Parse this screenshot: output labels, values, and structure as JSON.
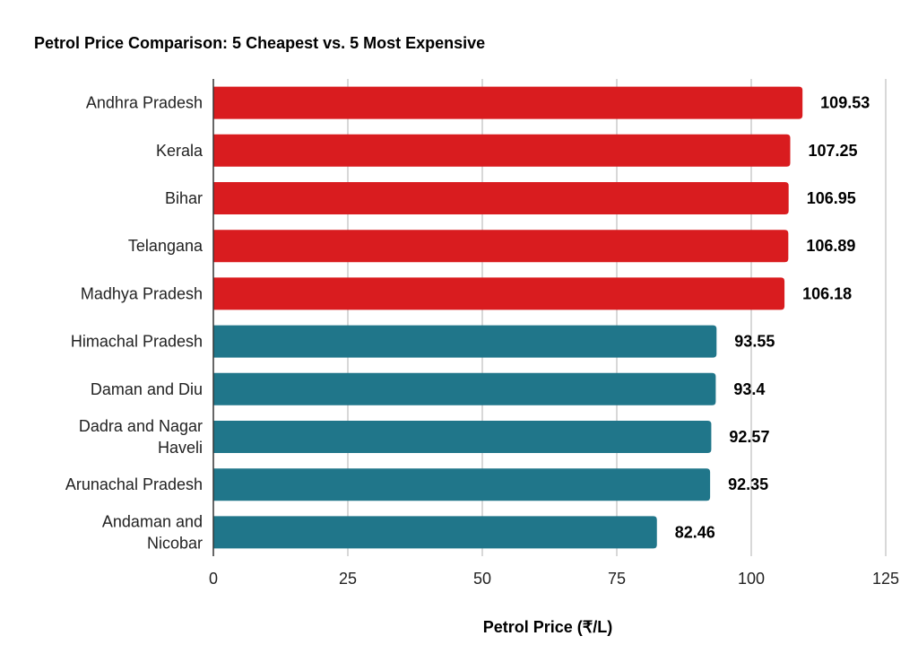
{
  "chart_data": {
    "type": "bar",
    "orientation": "horizontal",
    "title": "Petrol Price Comparison: 5 Cheapest vs. 5 Most Expensive",
    "xlabel": "Petrol Price (₹/L)",
    "ylabel": "",
    "xlim": [
      0,
      125
    ],
    "xticks": [
      0,
      25,
      50,
      75,
      100,
      125
    ],
    "grid": true,
    "legend": "none",
    "categories": [
      "Andhra Pradesh",
      "Kerala",
      "Bihar",
      "Telangana",
      "Madhya Pradesh",
      "Himachal Pradesh",
      "Daman and Diu",
      "Dadra and Nagar Haveli",
      "Arunachal Pradesh",
      "Andaman and Nicobar"
    ],
    "category_lines": [
      [
        "Andhra Pradesh"
      ],
      [
        "Kerala"
      ],
      [
        "Bihar"
      ],
      [
        "Telangana"
      ],
      [
        "Madhya Pradesh"
      ],
      [
        "Himachal Pradesh"
      ],
      [
        "Daman and Diu"
      ],
      [
        "Dadra and Nagar",
        "Haveli"
      ],
      [
        "Arunachal Pradesh"
      ],
      [
        "Andaman and",
        "Nicobar"
      ]
    ],
    "values": [
      109.53,
      107.25,
      106.95,
      106.89,
      106.18,
      93.55,
      93.4,
      92.57,
      92.35,
      82.46
    ],
    "value_labels": [
      "109.53",
      "107.25",
      "106.95",
      "106.89",
      "106.18",
      "93.55",
      "93.4",
      "92.57",
      "92.35",
      "82.46"
    ],
    "colors": [
      "#d91c1f",
      "#d91c1f",
      "#d91c1f",
      "#d91c1f",
      "#d91c1f",
      "#20768a",
      "#20768a",
      "#20768a",
      "#20768a",
      "#20768a"
    ],
    "grid_color": "#cccccc",
    "axis_color": "#333333"
  }
}
